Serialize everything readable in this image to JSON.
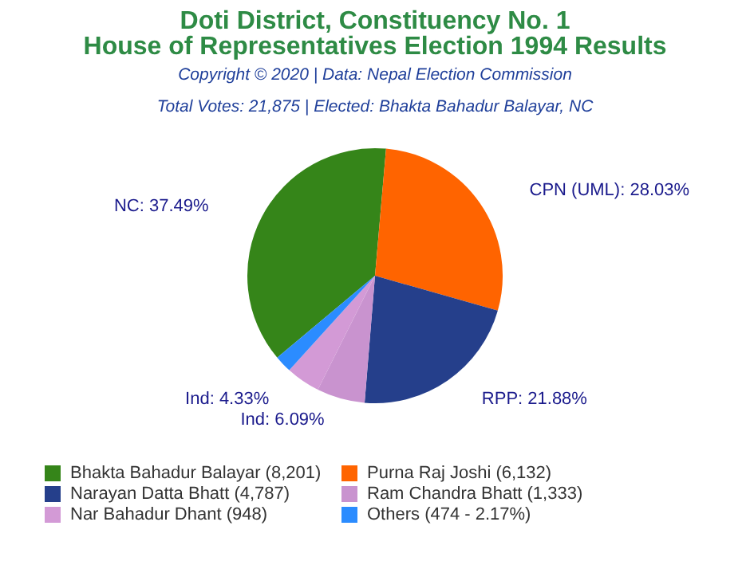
{
  "chart_data": {
    "type": "pie",
    "title": "Doti District, Constituency No. 1\nHouse of Representatives Election 1994 Results",
    "subtitle": "Copyright © 2020 | Data: Nepal Election Commission",
    "annotations": [
      "Total Votes: 21,875 | Elected: Bhakta Bahadur Balayar, NC"
    ],
    "categories": [
      "Bhakta Bahadur Balayar (8,201)",
      "Purna Raj Joshi (6,132)",
      "Narayan Datta Bhatt (4,787)",
      "Ram Chandra Bhatt (1,333)",
      "Nar Bahadur Dhant (948)",
      "Others (474 - 2.17%)"
    ],
    "values": [
      37.49,
      28.03,
      21.88,
      6.09,
      4.33,
      2.17
    ],
    "colors": [
      "#358519",
      "#ff6400",
      "#253f8b",
      "#c993cf",
      "#d39ad6",
      "#2b8cff"
    ],
    "value_labels": [
      "NC: 37.49%",
      "CPN (UML): 28.03%",
      "RPP: 21.88%",
      "Ind: 6.09%",
      "Ind: 4.33%",
      null
    ],
    "legend": "bottom"
  }
}
